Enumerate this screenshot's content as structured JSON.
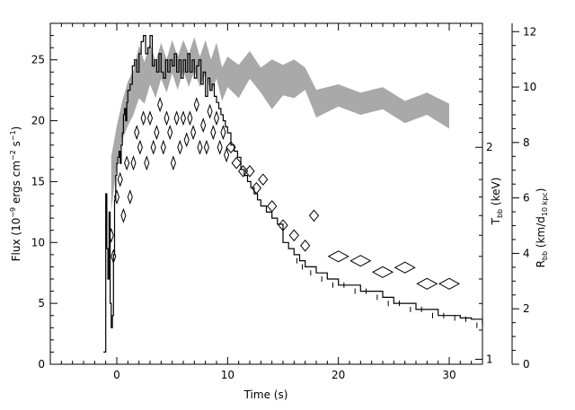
{
  "chart_data": {
    "type": "line",
    "xlabel": "Time (s)",
    "ylabel_left_parts": [
      "Flux (10",
      "−9",
      " ergs cm",
      "−2",
      " s",
      "−1",
      ")"
    ],
    "ylabel_right_T_parts": [
      "T",
      "bb",
      " (keV)"
    ],
    "ylabel_right_R_parts": [
      "R",
      "bb",
      " (km/d",
      "10 kpc",
      ")"
    ],
    "xlim": [
      -6,
      33
    ],
    "ylim_flux": [
      0,
      28
    ],
    "ylim_R": [
      0,
      12.3
    ],
    "x_ticks": [
      0,
      10,
      20,
      30
    ],
    "flux_ticks": [
      0,
      5,
      10,
      15,
      20,
      25
    ],
    "R_ticks": [
      0,
      2,
      4,
      6,
      8,
      10,
      12
    ],
    "T_ticks_keV": [
      1,
      2
    ],
    "T_axis_R_at_1keV": 0.18,
    "T_axis_R_per_decade": 25.4,
    "series": [
      {
        "kind": "flux-step",
        "x": [
          -1.2,
          -1.0,
          -0.9,
          -0.8,
          -0.7,
          -0.6,
          -0.5,
          -0.4,
          -0.3,
          -0.2,
          -0.1,
          0.0,
          0.1,
          0.2,
          0.3,
          0.4,
          0.5,
          0.6,
          0.7,
          0.8,
          0.9,
          1.0,
          1.2,
          1.4,
          1.6,
          1.8,
          2.0,
          2.2,
          2.4,
          2.6,
          2.8,
          3.0,
          3.2,
          3.4,
          3.6,
          3.8,
          4.0,
          4.2,
          4.4,
          4.6,
          4.8,
          5.0,
          5.2,
          5.4,
          5.6,
          5.8,
          6.0,
          6.2,
          6.4,
          6.6,
          6.8,
          7.0,
          7.2,
          7.4,
          7.6,
          7.8,
          8.0,
          8.2,
          8.4,
          8.6,
          8.8,
          9.0,
          9.2,
          9.4,
          9.6,
          9.8,
          10.0,
          10.3,
          10.6,
          10.9,
          11.2,
          11.5,
          11.8,
          12.1,
          12.4,
          12.7,
          13.0,
          13.5,
          14.0,
          14.5,
          15.0,
          15.5,
          16.0,
          16.5,
          17.0,
          18.0,
          19.0,
          20.0,
          21.0,
          22.0,
          23.0,
          24.0,
          25.0,
          26.0,
          27.0,
          28.0,
          29.0,
          30.0,
          31.0,
          32.0,
          33.0
        ],
        "y": [
          1.0,
          14.0,
          9.5,
          7.0,
          12.5,
          5.0,
          3.0,
          4.0,
          9.0,
          13.5,
          15.5,
          16.5,
          17.0,
          17.5,
          16.5,
          18.0,
          19.0,
          20.5,
          21.0,
          20.0,
          21.5,
          22.5,
          23.0,
          24.5,
          25.0,
          24.0,
          25.5,
          26.5,
          27.0,
          25.5,
          26.0,
          27.0,
          24.5,
          25.0,
          24.0,
          25.5,
          24.0,
          23.5,
          25.0,
          24.0,
          25.0,
          24.5,
          25.5,
          24.0,
          25.0,
          23.5,
          25.0,
          24.0,
          25.5,
          24.0,
          25.0,
          23.5,
          24.5,
          25.0,
          23.0,
          24.0,
          22.0,
          23.5,
          22.5,
          23.0,
          22.0,
          21.5,
          21.0,
          20.5,
          20.0,
          19.5,
          19.0,
          18.0,
          17.5,
          17.0,
          16.0,
          15.5,
          15.0,
          14.5,
          14.0,
          13.5,
          13.0,
          12.5,
          12.0,
          11.5,
          10.0,
          9.5,
          9.0,
          8.5,
          8.0,
          7.5,
          7.0,
          6.5,
          6.5,
          6.0,
          6.0,
          5.5,
          5.0,
          5.0,
          4.5,
          4.5,
          4.0,
          4.0,
          3.8,
          3.7,
          3.2
        ]
      },
      {
        "kind": "R-band",
        "x": [
          -0.5,
          0.0,
          0.5,
          1.0,
          1.5,
          2.0,
          2.5,
          3.0,
          3.5,
          4.0,
          4.5,
          5.0,
          5.5,
          6.0,
          6.5,
          7.0,
          7.5,
          8.0,
          8.5,
          9.0,
          9.5,
          10.0,
          11.0,
          12.0,
          13.0,
          14.0,
          15.0,
          16.0,
          17.0,
          18.0,
          20.0,
          22.0,
          24.0,
          26.0,
          28.0,
          30.0
        ],
        "lo": [
          5.5,
          7.2,
          8.1,
          8.6,
          9.0,
          9.6,
          9.4,
          10.1,
          9.6,
          10.3,
          9.8,
          10.5,
          9.9,
          10.6,
          10.0,
          10.6,
          10.0,
          10.5,
          9.8,
          10.3,
          9.5,
          10.0,
          9.6,
          10.3,
          9.8,
          9.2,
          9.7,
          9.6,
          9.9,
          8.9,
          9.3,
          9.0,
          9.2,
          8.7,
          9.0,
          8.5
        ],
        "hi": [
          7.5,
          8.6,
          9.5,
          10.2,
          10.6,
          11.5,
          10.9,
          11.6,
          10.9,
          11.6,
          11.0,
          11.7,
          11.1,
          11.7,
          11.2,
          11.8,
          11.1,
          11.7,
          11.0,
          11.6,
          10.7,
          11.1,
          10.8,
          11.3,
          10.7,
          11.0,
          10.8,
          11.0,
          10.7,
          9.9,
          10.1,
          9.8,
          10.0,
          9.5,
          9.8,
          9.4
        ]
      },
      {
        "kind": "T-diamonds",
        "x": [
          -0.5,
          -0.3,
          0.0,
          0.3,
          0.6,
          0.9,
          1.2,
          1.5,
          1.8,
          2.1,
          2.4,
          2.7,
          3.0,
          3.3,
          3.6,
          3.9,
          4.2,
          4.5,
          4.8,
          5.1,
          5.4,
          5.7,
          6.0,
          6.3,
          6.6,
          6.9,
          7.2,
          7.5,
          7.8,
          8.1,
          8.4,
          8.7,
          9.0,
          9.3,
          9.6,
          9.9,
          10.3,
          10.8,
          11.4,
          12.0,
          12.6,
          13.2,
          14.0,
          15.0,
          16.0,
          17.0,
          17.8,
          20.0,
          22.0,
          24.0,
          26.0,
          28.0,
          30.0
        ],
        "y": [
          1.5,
          1.4,
          1.7,
          1.8,
          1.6,
          1.9,
          1.7,
          1.9,
          2.1,
          2.0,
          2.2,
          1.9,
          2.2,
          2.0,
          2.1,
          2.3,
          2.0,
          2.2,
          2.1,
          1.9,
          2.2,
          2.0,
          2.2,
          2.05,
          2.2,
          2.1,
          2.3,
          2.0,
          2.15,
          2.0,
          2.25,
          2.1,
          2.2,
          2.0,
          2.1,
          1.95,
          2.0,
          1.9,
          1.85,
          1.85,
          1.75,
          1.8,
          1.65,
          1.55,
          1.5,
          1.45,
          1.6,
          1.4,
          1.38,
          1.33,
          1.35,
          1.28,
          1.28
        ]
      }
    ]
  }
}
